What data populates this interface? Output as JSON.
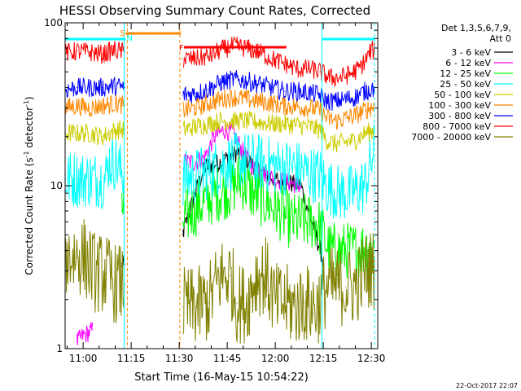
{
  "chart_data": {
    "type": "line",
    "title": "HESSI Observing Summary Count Rates, Corrected",
    "xlabel": "Start Time (16-May-15 10:54:22)",
    "ylabel": "Corrected Count Rate (s⁻¹ detector⁻¹)",
    "ylabel_main": "Corrected Count Rate (s",
    "ylabel_sup1": "-1",
    "ylabel_mid": " detector",
    "ylabel_sup2": "-1",
    "ylabel_end": ")",
    "y_scale": "log",
    "ylim": [
      1,
      100
    ],
    "y_ticks": [
      "1",
      "10",
      "100"
    ],
    "xlim": [
      54.37,
      152
    ],
    "x_start_minutes": 54.37,
    "x_ticks": [
      {
        "v": 60,
        "label": "11:00"
      },
      {
        "v": 75,
        "label": "11:15"
      },
      {
        "v": 90,
        "label": "11:30"
      },
      {
        "v": 105,
        "label": "11:45"
      },
      {
        "v": 120,
        "label": "12:00"
      },
      {
        "v": 135,
        "label": "12:15"
      },
      {
        "v": 150,
        "label": "12:30"
      }
    ],
    "legend_header": [
      "Det 1,3,5,6,7,9,",
      "Att 0"
    ],
    "legend_position": "right",
    "timestamp": "22-Oct-2017 22:07",
    "series": [
      {
        "name": "3 - 6 keV",
        "color": "#000000",
        "points": [
          [
            72,
            3.2
          ],
          [
            73,
            3.3
          ],
          [
            91,
            5
          ],
          [
            95,
            9
          ],
          [
            98,
            13
          ],
          [
            103,
            14
          ],
          [
            108,
            16
          ],
          [
            112,
            14
          ],
          [
            116,
            12
          ],
          [
            120,
            11
          ],
          [
            123,
            10.5
          ],
          [
            128,
            10
          ],
          [
            135,
            3.5
          ]
        ]
      },
      {
        "name": "6 - 12 keV",
        "color": "#ff00ff",
        "points": [
          [
            58,
            1.1
          ],
          [
            60,
            1.2
          ],
          [
            63,
            1.3
          ],
          [
            91,
            14
          ],
          [
            95,
            14
          ],
          [
            98,
            15
          ],
          [
            101,
            20
          ],
          [
            104,
            22
          ],
          [
            107,
            21
          ],
          [
            110,
            16
          ],
          [
            113,
            13
          ],
          [
            116,
            12
          ],
          [
            120,
            11
          ],
          [
            124,
            10.5
          ],
          [
            128,
            10
          ]
        ]
      },
      {
        "name": "12 - 25 keV",
        "color": "#00ff00",
        "points": [
          [
            72,
            7
          ],
          [
            73,
            7.5
          ],
          [
            91,
            6
          ],
          [
            94,
            7
          ],
          [
            98,
            8
          ],
          [
            102,
            9
          ],
          [
            106,
            9.5
          ],
          [
            109,
            11
          ],
          [
            113,
            9
          ],
          [
            117,
            8
          ],
          [
            121,
            7
          ],
          [
            125,
            6
          ],
          [
            129,
            6
          ],
          [
            133,
            6
          ],
          [
            137,
            4
          ],
          [
            141,
            4
          ],
          [
            145,
            4
          ],
          [
            149,
            4.2
          ],
          [
            151,
            4.2
          ]
        ]
      },
      {
        "name": "25 - 50 keV",
        "color": "#00ffff",
        "points": [
          [
            54.5,
            11
          ],
          [
            58,
            11
          ],
          [
            61,
            11
          ],
          [
            64,
            11
          ],
          [
            67,
            11
          ],
          [
            68,
            14
          ],
          [
            70,
            14
          ],
          [
            72,
            12
          ],
          [
            73,
            12
          ],
          [
            91,
            11
          ],
          [
            95,
            11.5
          ],
          [
            98,
            12
          ],
          [
            102,
            13
          ],
          [
            106,
            14
          ],
          [
            110,
            14.5
          ],
          [
            114,
            14
          ],
          [
            118,
            13.5
          ],
          [
            122,
            13
          ],
          [
            126,
            13
          ],
          [
            130,
            12
          ],
          [
            134,
            11.5
          ],
          [
            136,
            10
          ],
          [
            140,
            9
          ],
          [
            144,
            9
          ],
          [
            148,
            10
          ],
          [
            150,
            14
          ],
          [
            151,
            17
          ]
        ]
      },
      {
        "name": "50 - 100 keV",
        "color": "#cccc00",
        "points": [
          [
            54.5,
            21
          ],
          [
            58,
            21
          ],
          [
            62,
            21
          ],
          [
            66,
            20
          ],
          [
            70,
            22
          ],
          [
            73,
            22
          ],
          [
            91,
            22
          ],
          [
            95,
            23
          ],
          [
            99,
            24
          ],
          [
            103,
            25
          ],
          [
            107,
            25
          ],
          [
            111,
            25
          ],
          [
            115,
            24.5
          ],
          [
            119,
            24
          ],
          [
            123,
            24
          ],
          [
            127,
            23.5
          ],
          [
            131,
            23
          ],
          [
            134,
            22
          ],
          [
            136,
            19
          ],
          [
            139,
            18
          ],
          [
            142,
            18.5
          ],
          [
            145,
            19
          ],
          [
            148,
            21
          ],
          [
            151,
            22
          ]
        ]
      },
      {
        "name": "100 - 300 keV",
        "color": "#ff8800",
        "points": [
          [
            54.5,
            30
          ],
          [
            58,
            31
          ],
          [
            62,
            30
          ],
          [
            66,
            31
          ],
          [
            70,
            32
          ],
          [
            73,
            31
          ],
          [
            91,
            29
          ],
          [
            95,
            30
          ],
          [
            99,
            32
          ],
          [
            103,
            34
          ],
          [
            107,
            35
          ],
          [
            111,
            34
          ],
          [
            115,
            33
          ],
          [
            119,
            32
          ],
          [
            123,
            31
          ],
          [
            127,
            30.5
          ],
          [
            131,
            30
          ],
          [
            134,
            29
          ],
          [
            136,
            26
          ],
          [
            139,
            25
          ],
          [
            142,
            26
          ],
          [
            145,
            27
          ],
          [
            148,
            29
          ],
          [
            151,
            31
          ]
        ]
      },
      {
        "name": "300 - 800 keV",
        "color": "#0000ff",
        "points": [
          [
            54.5,
            39
          ],
          [
            58,
            40
          ],
          [
            62,
            40
          ],
          [
            66,
            40
          ],
          [
            70,
            41
          ],
          [
            73,
            40
          ],
          [
            91,
            36
          ],
          [
            95,
            37
          ],
          [
            99,
            39
          ],
          [
            103,
            43
          ],
          [
            107,
            45
          ],
          [
            111,
            44
          ],
          [
            115,
            42
          ],
          [
            119,
            40
          ],
          [
            123,
            38
          ],
          [
            127,
            38
          ],
          [
            131,
            37
          ],
          [
            134,
            36
          ],
          [
            136,
            33
          ],
          [
            139,
            33
          ],
          [
            142,
            34
          ],
          [
            145,
            35
          ],
          [
            148,
            38
          ],
          [
            151,
            40
          ]
        ]
      },
      {
        "name": "800 - 7000 keV",
        "color": "#ff0000",
        "points": [
          [
            54.5,
            65
          ],
          [
            58,
            67
          ],
          [
            62,
            66
          ],
          [
            66,
            64
          ],
          [
            70,
            68
          ],
          [
            73,
            66
          ],
          [
            91,
            60
          ],
          [
            95,
            60
          ],
          [
            99,
            62
          ],
          [
            103,
            68
          ],
          [
            107,
            72
          ],
          [
            111,
            70
          ],
          [
            115,
            66
          ],
          [
            119,
            60
          ],
          [
            123,
            56
          ],
          [
            127,
            52
          ],
          [
            131,
            52
          ],
          [
            134,
            50
          ],
          [
            137,
            46
          ],
          [
            140,
            46
          ],
          [
            143,
            48
          ],
          [
            146,
            52
          ],
          [
            148,
            58
          ],
          [
            150,
            68
          ],
          [
            151,
            67
          ]
        ]
      },
      {
        "name": "7000 - 20000 keV",
        "color": "#808000",
        "points": [
          [
            54.5,
            3.7
          ],
          [
            60,
            3.7
          ],
          [
            64,
            2.9
          ],
          [
            67,
            2.9
          ],
          [
            70,
            2.5
          ],
          [
            72,
            2.5
          ],
          [
            73,
            2.5
          ],
          [
            91,
            1.8
          ],
          [
            95,
            1.8
          ],
          [
            99,
            1.9
          ],
          [
            103,
            2.8
          ],
          [
            106,
            2.8
          ],
          [
            108,
            1.9
          ],
          [
            111,
            1.9
          ],
          [
            114,
            2.8
          ],
          [
            117,
            2.8
          ],
          [
            120,
            1.9
          ],
          [
            123,
            1.9
          ],
          [
            126,
            1.8
          ],
          [
            129,
            1.9
          ],
          [
            133,
            1.8
          ],
          [
            136,
            2.4
          ],
          [
            139,
            2.4
          ],
          [
            142,
            2.4
          ],
          [
            145,
            2.4
          ],
          [
            148,
            3.0
          ],
          [
            151,
            3.1
          ]
        ]
      }
    ],
    "flags": {
      "s_label": "S",
      "n_label": "N",
      "f_label": "F",
      "saa_cyan": [
        {
          "start": 54.37,
          "end": 73.3
        },
        {
          "start": 134.6,
          "end": 151.2
        }
      ],
      "night_orange": [
        {
          "start": 73.3,
          "end": 90.5
        }
      ],
      "flare_red": [
        {
          "start": 91.5,
          "end": 123.5
        }
      ],
      "vlines": [
        {
          "v": 72.8,
          "color": "#00ffff",
          "dash": false
        },
        {
          "v": 73.8,
          "color": "#ff8800",
          "dash": true
        },
        {
          "v": 90.2,
          "color": "#ff8800",
          "dash": true
        },
        {
          "v": 134.6,
          "color": "#00ffff",
          "dash": false
        },
        {
          "v": 151.0,
          "color": "#00ffff",
          "dash": true
        }
      ]
    }
  }
}
